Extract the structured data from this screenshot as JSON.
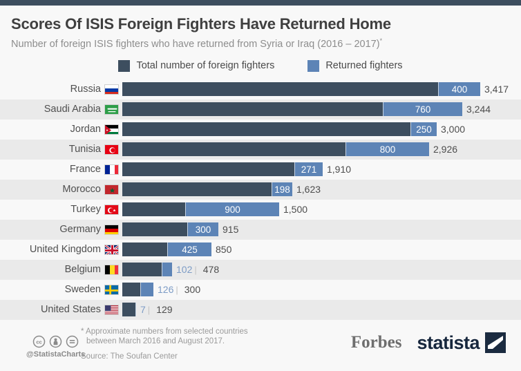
{
  "header": {
    "title": "Scores Of ISIS Foreign Fighters Have Returned Home",
    "subtitle": "Number of foreign ISIS fighters who have returned from Syria or Iraq (2016 – 2017)",
    "footnote_marker": "*"
  },
  "legend": {
    "items": [
      {
        "label": "Total number of foreign fighters",
        "color": "#3d4e5f"
      },
      {
        "label": "Returned fighters",
        "color": "#5d84b6"
      }
    ]
  },
  "chart_data": {
    "type": "bar",
    "orientation": "horizontal",
    "title": "Scores Of ISIS Foreign Fighters Have Returned Home",
    "xlim": [
      0,
      3417
    ],
    "value_divider": "|",
    "categories": [
      "Russia",
      "Saudi Arabia",
      "Jordan",
      "Tunisia",
      "France",
      "Morocco",
      "Turkey",
      "Germany",
      "United Kingdom",
      "Belgium",
      "Sweden",
      "United States"
    ],
    "series": [
      {
        "name": "Total number of foreign fighters",
        "values": [
          3417,
          3244,
          3000,
          2926,
          1910,
          1623,
          1500,
          915,
          850,
          478,
          300,
          129
        ]
      },
      {
        "name": "Returned fighters",
        "values": [
          400,
          760,
          250,
          800,
          271,
          198,
          900,
          300,
          425,
          102,
          126,
          7
        ]
      }
    ],
    "rows": [
      {
        "country": "Russia",
        "flag": "russia",
        "total": 3417,
        "returned": 400,
        "total_label": "3,417",
        "returned_label": "400",
        "returned_label_position": "inside"
      },
      {
        "country": "Saudi Arabia",
        "flag": "saudi-arabia",
        "total": 3244,
        "returned": 760,
        "total_label": "3,244",
        "returned_label": "760",
        "returned_label_position": "inside"
      },
      {
        "country": "Jordan",
        "flag": "jordan",
        "total": 3000,
        "returned": 250,
        "total_label": "3,000",
        "returned_label": "250",
        "returned_label_position": "inside"
      },
      {
        "country": "Tunisia",
        "flag": "tunisia",
        "total": 2926,
        "returned": 800,
        "total_label": "2,926",
        "returned_label": "800",
        "returned_label_position": "inside"
      },
      {
        "country": "France",
        "flag": "france",
        "total": 1910,
        "returned": 271,
        "total_label": "1,910",
        "returned_label": "271",
        "returned_label_position": "inside"
      },
      {
        "country": "Morocco",
        "flag": "morocco",
        "total": 1623,
        "returned": 198,
        "total_label": "1,623",
        "returned_label": "198",
        "returned_label_position": "inside"
      },
      {
        "country": "Turkey",
        "flag": "turkey",
        "total": 1500,
        "returned": 900,
        "total_label": "1,500",
        "returned_label": "900",
        "returned_label_position": "inside"
      },
      {
        "country": "Germany",
        "flag": "germany",
        "total": 915,
        "returned": 300,
        "total_label": "915",
        "returned_label": "300",
        "returned_label_position": "inside"
      },
      {
        "country": "United Kingdom",
        "flag": "united-kingdom",
        "total": 850,
        "returned": 425,
        "total_label": "850",
        "returned_label": "425",
        "returned_label_position": "inside"
      },
      {
        "country": "Belgium",
        "flag": "belgium",
        "total": 478,
        "returned": 102,
        "total_label": "478",
        "returned_label": "102",
        "returned_label_position": "outside"
      },
      {
        "country": "Sweden",
        "flag": "sweden",
        "total": 300,
        "returned": 126,
        "total_label": "300",
        "returned_label": "126",
        "returned_label_position": "outside"
      },
      {
        "country": "United States",
        "flag": "united-states",
        "total": 129,
        "returned": 7,
        "total_label": "129",
        "returned_label": "7",
        "returned_label_position": "outside"
      }
    ]
  },
  "footer": {
    "footnote_line1": "* Approximate numbers from selected countries",
    "footnote_line2": "between March 2016 and August 2017.",
    "source": "Source: The Soufan Center",
    "handle": "@StatistaCharts",
    "brand_forbes": "Forbes",
    "brand_statista": "statista"
  },
  "colors": {
    "total_bar": "#3d4e5f",
    "returned_bar": "#5d84b6",
    "row_stripe": "#eaeaea",
    "background": "#f8f8f8",
    "outside_value_text": "#7d9cc6",
    "brand_navy": "#17273d"
  }
}
